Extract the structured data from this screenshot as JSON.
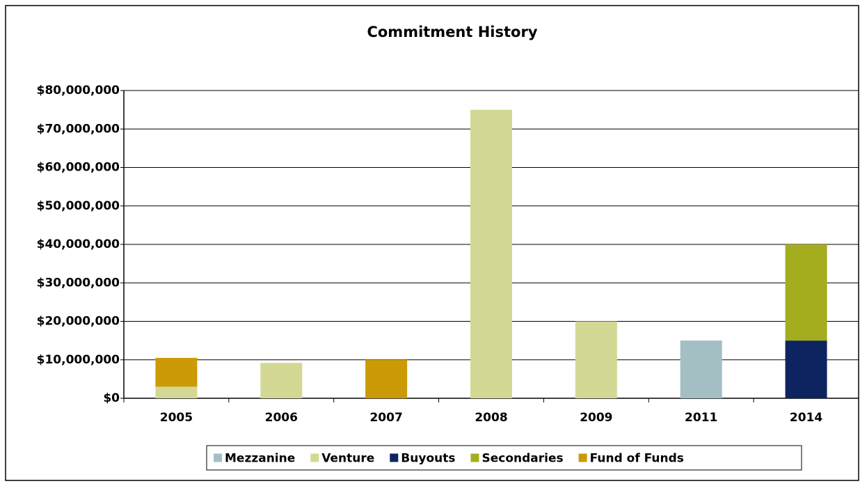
{
  "chart_data": {
    "type": "bar",
    "stacked": true,
    "title": "Commitment History",
    "categories": [
      "2005",
      "2006",
      "2007",
      "2008",
      "2009",
      "2011",
      "2014"
    ],
    "series": [
      {
        "name": "Mezzanine",
        "color": "#a3bfc4",
        "values": [
          0,
          0,
          0,
          0,
          0,
          15000000,
          0
        ]
      },
      {
        "name": "Venture",
        "color": "#d3d994",
        "values": [
          3000000,
          9200000,
          0,
          75000000,
          20000000,
          0,
          0
        ]
      },
      {
        "name": "Buyouts",
        "color": "#0d2461",
        "values": [
          0,
          0,
          0,
          0,
          0,
          0,
          15000000
        ]
      },
      {
        "name": "Secondaries",
        "color": "#a3ad1e",
        "values": [
          0,
          0,
          0,
          0,
          0,
          0,
          25000000
        ]
      },
      {
        "name": "Fund of Funds",
        "color": "#cc9a06",
        "values": [
          7500000,
          0,
          10000000,
          0,
          0,
          0,
          0
        ]
      }
    ],
    "ylim": [
      0,
      80000000
    ],
    "yticks": [
      {
        "value": 0,
        "label": "$0"
      },
      {
        "value": 10000000,
        "label": "$10,000,000"
      },
      {
        "value": 20000000,
        "label": "$20,000,000"
      },
      {
        "value": 30000000,
        "label": "$30,000,000"
      },
      {
        "value": 40000000,
        "label": "$40,000,000"
      },
      {
        "value": 50000000,
        "label": "$50,000,000"
      },
      {
        "value": 60000000,
        "label": "$60,000,000"
      },
      {
        "value": 70000000,
        "label": "$70,000,000"
      },
      {
        "value": 80000000,
        "label": "$80,000,000"
      }
    ],
    "grid": true,
    "legend": "bottom"
  }
}
